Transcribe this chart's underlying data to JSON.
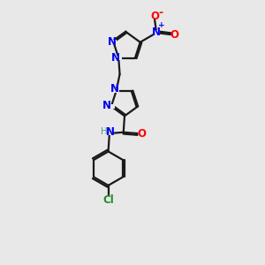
{
  "background_color": "#e8e8e8",
  "bond_color": "#1a1a1a",
  "atom_colors": {
    "N": "#0000ee",
    "O": "#ff0000",
    "Cl": "#228B22",
    "H": "#4a9a8a",
    "C": "#1a1a1a"
  },
  "figsize": [
    3.0,
    3.0
  ],
  "dpi": 100
}
